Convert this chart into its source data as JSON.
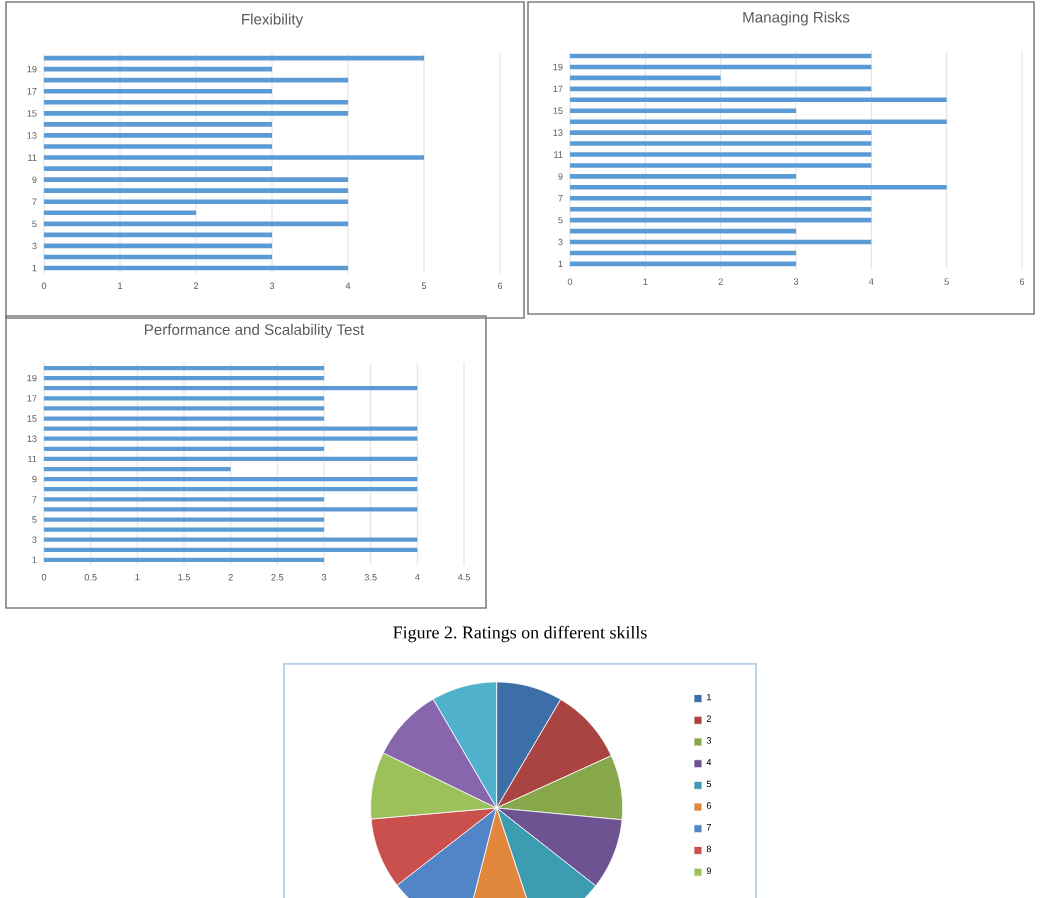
{
  "chart_data": [
    {
      "type": "bar",
      "orientation": "horizontal",
      "title": "Flexibility",
      "categories": [
        null,
        "19",
        null,
        "17",
        null,
        "15",
        null,
        "13",
        null,
        "11",
        null,
        "9",
        null,
        "7",
        null,
        "5",
        null,
        "3",
        null,
        "1"
      ],
      "values": [
        5,
        3,
        4,
        3,
        4,
        4,
        3,
        3,
        3,
        5,
        3,
        4,
        4,
        4,
        2,
        4,
        3,
        3,
        3,
        4
      ],
      "color": "#5b9bd5",
      "xlim": [
        0,
        6
      ],
      "xticks": [
        0,
        1,
        2,
        3,
        4,
        5,
        6
      ],
      "grid": "x"
    },
    {
      "type": "bar",
      "orientation": "horizontal",
      "title": "Managing Risks",
      "categories": [
        null,
        "19",
        null,
        "17",
        null,
        "15",
        null,
        "13",
        null,
        "11",
        null,
        "9",
        null,
        "7",
        null,
        "5",
        null,
        "3",
        null,
        "1"
      ],
      "values": [
        4,
        4,
        2,
        4,
        5,
        3,
        5,
        4,
        4,
        4,
        4,
        3,
        5,
        4,
        4,
        4,
        3,
        4,
        3,
        3
      ],
      "color": "#5b9bd5",
      "xlim": [
        0,
        6
      ],
      "xticks": [
        0,
        1,
        2,
        3,
        4,
        5,
        6
      ],
      "grid": "x"
    },
    {
      "type": "bar",
      "orientation": "horizontal",
      "title": "Performance and Scalability Test",
      "categories": [
        null,
        "19",
        null,
        "17",
        null,
        "15",
        null,
        "13",
        null,
        "11",
        null,
        "9",
        null,
        "7",
        null,
        "5",
        null,
        "3",
        null,
        "1"
      ],
      "values": [
        3,
        3,
        4,
        3,
        3,
        3,
        4,
        4,
        3,
        4,
        2,
        4,
        4,
        3,
        4,
        3,
        3,
        4,
        4,
        3
      ],
      "color": "#5b9bd5",
      "xlim": [
        0,
        4.5
      ],
      "xticks": [
        0,
        0.5,
        1,
        1.5,
        2,
        2.5,
        3,
        3.5,
        4,
        4.5
      ],
      "grid": "x",
      "annotations": [
        "Figure 2. Ratings on different skills"
      ]
    },
    {
      "type": "pie",
      "categories": [
        "1",
        "2",
        "3",
        "4",
        "5",
        "6",
        "7",
        "8",
        "9",
        null,
        null
      ],
      "values": [
        8.5,
        9.7,
        8.3,
        9.1,
        9.3,
        9.1,
        10.5,
        9.1,
        8.6,
        9.4,
        8.4
      ],
      "colors": [
        "#3c6ea8",
        "#a94442",
        "#86a84b",
        "#6e5393",
        "#3b9cb2",
        "#e0873c",
        "#5284c8",
        "#c9504c",
        "#9cc05a",
        "#8766ad",
        "#4fb1cb"
      ],
      "legend": "right"
    }
  ]
}
